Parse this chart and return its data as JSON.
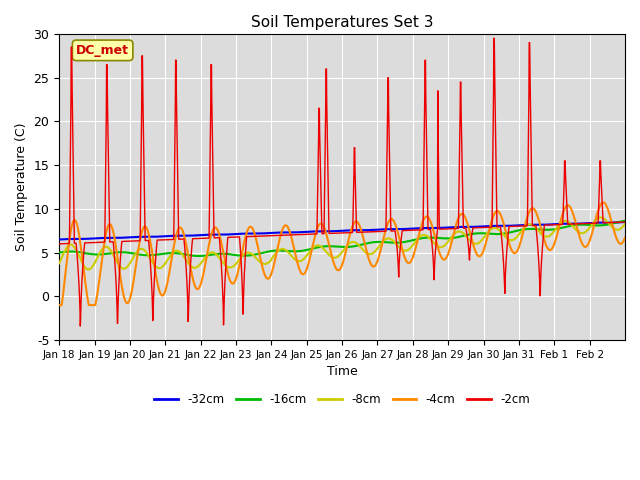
{
  "title": "Soil Temperatures Set 3",
  "xlabel": "Time",
  "ylabel": "Soil Temperature (C)",
  "ylim": [
    -5,
    30
  ],
  "xlim": [
    0,
    16
  ],
  "xtick_labels": [
    "Jan 18",
    "Jan 19",
    "Jan 20",
    "Jan 21",
    "Jan 22",
    "Jan 23",
    "Jan 24",
    "Jan 25",
    "Jan 26",
    "Jan 27",
    "Jan 28",
    "Jan 29",
    "Jan 30",
    "Jan 31",
    "Feb 1",
    "Feb 2"
  ],
  "series_labels": [
    "-32cm",
    "-16cm",
    "-8cm",
    "-4cm",
    "-2cm"
  ],
  "series_colors": [
    "#0000ee",
    "#00bb00",
    "#cccc00",
    "#ff8800",
    "#ee0000"
  ],
  "dc_met_box_facecolor": "#ffffaa",
  "dc_met_text_color": "#cc0000",
  "dc_met_edge_color": "#888800",
  "background_color": "#ffffff",
  "plot_bg_color": "#dcdcdc",
  "grid_color": "#ffffff",
  "yticks": [
    -5,
    0,
    5,
    10,
    15,
    20,
    25,
    30
  ]
}
